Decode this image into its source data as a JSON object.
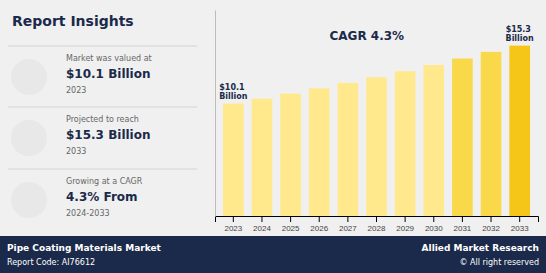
{
  "chart_data": {
    "type": "bar",
    "title": "Report Insights",
    "categories": [
      "2023",
      "2024",
      "2025",
      "2026",
      "2027",
      "2028",
      "2029",
      "2030",
      "2031",
      "2032",
      "2033"
    ],
    "values": [
      10.1,
      10.54,
      10.99,
      11.46,
      11.95,
      12.46,
      13.0,
      13.56,
      14.14,
      14.74,
      15.3
    ],
    "value_labels": [
      "$10.1 Billion",
      null,
      null,
      null,
      null,
      null,
      null,
      null,
      null,
      null,
      "$15.3 Billion"
    ],
    "colors": [
      "#FFE98C",
      "#FFE98C",
      "#FFE98C",
      "#FFE98C",
      "#FFE98C",
      "#FFE98C",
      "#FFE98C",
      "#FFE98C",
      "#F9D84A",
      "#F9D84A",
      "#F5C518"
    ],
    "ylim": [
      0,
      18.5
    ],
    "yticks": [],
    "tick_labels": "x",
    "grid": false,
    "annotations": [
      "Market was valued at",
      "$10.1 Billion",
      "2023",
      "Projected to reach",
      "$15.3 Billion",
      "2033",
      "Growing at a CAGR",
      "4.3% From",
      "2024-2033",
      "CAGR 4.3%",
      "Pipe Coating Materials Market",
      "Report Code: AI76612",
      "Allied Market Research",
      "© All right reserved"
    ]
  }
}
